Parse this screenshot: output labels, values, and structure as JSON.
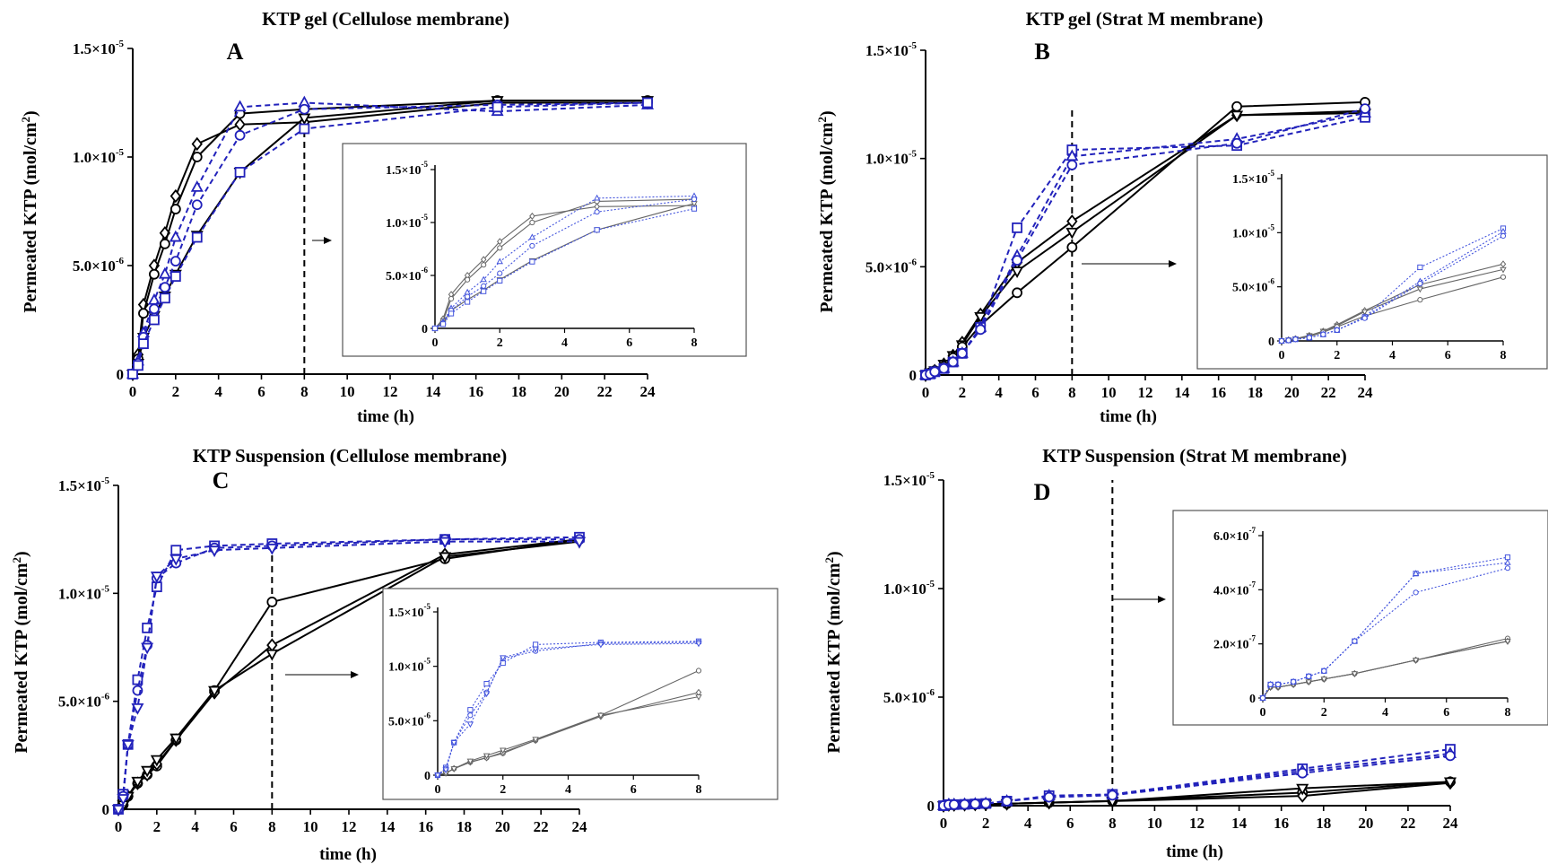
{
  "figure": {
    "colors": {
      "gel_black": "#000000",
      "blue": "#2222bb",
      "inset_gray": "#666666",
      "inset_blue": "#4455dd"
    }
  },
  "chart_data": [
    {
      "panel": "A",
      "type": "line",
      "title": "KTP gel  (Cellulose membrane)",
      "letter": "A",
      "xlabel": "time (h)",
      "ylabel": "Permeated KTP  (mol/cm2)",
      "x_ticks": [
        "0",
        "2",
        "4",
        "6",
        "8",
        "10",
        "12",
        "14",
        "16",
        "18",
        "20",
        "22",
        "24"
      ],
      "y_ticks": [
        "0",
        "5.0×10-6",
        "1.0×10-5",
        "1.5×10-5"
      ],
      "xlim": [
        0,
        24
      ],
      "ylim": [
        0,
        1.5e-05
      ],
      "vline_x": 8,
      "x": [
        0,
        0.25,
        0.5,
        1,
        1.5,
        2,
        3,
        5,
        8,
        17,
        24
      ],
      "series": [
        {
          "color": "black",
          "marker": "diamond",
          "dashed": false,
          "values": [
            0,
            9e-07,
            3.2e-06,
            5e-06,
            6.5e-06,
            8.2e-06,
            1.06e-05,
            1.15e-05,
            1.16e-05,
            1.25e-05,
            1.25e-05
          ]
        },
        {
          "color": "black",
          "marker": "circle",
          "dashed": false,
          "values": [
            0,
            7e-07,
            2.8e-06,
            4.6e-06,
            6e-06,
            7.6e-06,
            1e-05,
            1.2e-05,
            1.22e-05,
            1.26e-05,
            1.26e-05
          ]
        },
        {
          "color": "black",
          "marker": "triangle-down",
          "dashed": false,
          "values": [
            0,
            5e-07,
            1.7e-06,
            2.7e-06,
            3.6e-06,
            4.6e-06,
            6.4e-06,
            9.3e-06,
            1.18e-05,
            1.26e-05,
            1.26e-05
          ]
        },
        {
          "color": "blue",
          "marker": "triangle",
          "dashed": true,
          "values": [
            0,
            6e-07,
            1.9e-06,
            3.4e-06,
            4.6e-06,
            6.3e-06,
            8.6e-06,
            1.23e-05,
            1.25e-05,
            1.21e-05,
            1.24e-05
          ]
        },
        {
          "color": "blue",
          "marker": "circle",
          "dashed": true,
          "values": [
            0,
            5e-07,
            1.7e-06,
            3e-06,
            4e-06,
            5.2e-06,
            7.8e-06,
            1.1e-05,
            1.22e-05,
            1.24e-05,
            1.25e-05
          ]
        },
        {
          "color": "blue",
          "marker": "square",
          "dashed": true,
          "values": [
            0,
            4e-07,
            1.4e-06,
            2.5e-06,
            3.5e-06,
            4.5e-06,
            6.3e-06,
            9.3e-06,
            1.13e-05,
            1.23e-05,
            1.25e-05
          ]
        }
      ],
      "inset": {
        "x_ticks": [
          "0",
          "2",
          "4",
          "6",
          "8"
        ],
        "y_ticks": [
          "0",
          "5.0×10-6",
          "1.0×10-5",
          "1.5×10-5"
        ],
        "xlim": [
          0,
          8
        ],
        "ylim": [
          0,
          1.5e-05
        ]
      }
    },
    {
      "panel": "B",
      "type": "line",
      "title": "KTP gel (Strat M membrane)",
      "letter": "B",
      "xlabel": "time (h)",
      "ylabel": "Permeated KTP  (mol/cm2)",
      "x_ticks": [
        "0",
        "2",
        "4",
        "6",
        "8",
        "10",
        "12",
        "14",
        "16",
        "18",
        "20",
        "22",
        "24"
      ],
      "y_ticks": [
        "0",
        "5.0×10-6",
        "1.0×10-5",
        "1.5×10-5"
      ],
      "xlim": [
        0,
        24
      ],
      "ylim": [
        0,
        1.5e-05
      ],
      "vline_x": 8,
      "x": [
        0,
        0.25,
        0.5,
        1,
        1.5,
        2,
        3,
        5,
        8,
        17,
        24
      ],
      "series": [
        {
          "color": "black",
          "marker": "diamond",
          "dashed": false,
          "values": [
            0,
            1e-07,
            2e-07,
            5e-07,
            9e-07,
            1.5e-06,
            2.8e-06,
            5.2e-06,
            7.1e-06,
            1.2e-05,
            1.22e-05
          ]
        },
        {
          "color": "black",
          "marker": "triangle-down",
          "dashed": false,
          "values": [
            0,
            1e-07,
            2e-07,
            5e-07,
            9e-07,
            1.4e-06,
            2.7e-06,
            4.8e-06,
            6.6e-06,
            1.2e-05,
            1.21e-05
          ]
        },
        {
          "color": "black",
          "marker": "circle",
          "dashed": false,
          "values": [
            0,
            1e-07,
            2e-07,
            4e-07,
            8e-07,
            1.3e-06,
            2.3e-06,
            3.8e-06,
            5.9e-06,
            1.24e-05,
            1.26e-05
          ]
        },
        {
          "color": "blue",
          "marker": "square",
          "dashed": true,
          "values": [
            0,
            5e-08,
            1.5e-07,
            3e-07,
            6e-07,
            1e-06,
            2.2e-06,
            6.8e-06,
            1.04e-05,
            1.06e-05,
            1.19e-05
          ]
        },
        {
          "color": "blue",
          "marker": "triangle",
          "dashed": true,
          "values": [
            0,
            5e-08,
            1.5e-07,
            3e-07,
            6e-07,
            1e-06,
            2.2e-06,
            5.5e-06,
            1.01e-05,
            1.09e-05,
            1.21e-05
          ]
        },
        {
          "color": "blue",
          "marker": "circle",
          "dashed": true,
          "values": [
            0,
            5e-08,
            1.5e-07,
            3e-07,
            6e-07,
            1e-06,
            2.1e-06,
            5.3e-06,
            9.7e-06,
            1.07e-05,
            1.23e-05
          ]
        }
      ],
      "inset": {
        "x_ticks": [
          "0",
          "2",
          "4",
          "6",
          "8"
        ],
        "y_ticks": [
          "0",
          "5.0×10-6",
          "1.0×10-5",
          "1.5×10-5"
        ],
        "xlim": [
          0,
          8
        ],
        "ylim": [
          0,
          1.5e-05
        ]
      }
    },
    {
      "panel": "C",
      "type": "line",
      "title": "KTP Suspension (Cellulose membrane)",
      "letter": "C",
      "xlabel": "time (h)",
      "ylabel": "Permeated KTP  (mol/cm2)",
      "x_ticks": [
        "0",
        "2",
        "4",
        "6",
        "8",
        "10",
        "12",
        "14",
        "16",
        "18",
        "20",
        "22",
        "24"
      ],
      "y_ticks": [
        "0",
        "5.0×10-6",
        "1.0×10-5",
        "1.5×10-5"
      ],
      "xlim": [
        0,
        24
      ],
      "ylim": [
        0,
        1.5e-05
      ],
      "vline_x": 8,
      "x": [
        0,
        0.25,
        0.5,
        1,
        1.5,
        2,
        3,
        5,
        8,
        17,
        24
      ],
      "series": [
        {
          "color": "black",
          "marker": "circle",
          "dashed": false,
          "values": [
            0,
            2e-07,
            6e-07,
            1.2e-06,
            1.6e-06,
            2e-06,
            3.2e-06,
            5.5e-06,
            9.6e-06,
            1.16e-05,
            1.25e-05
          ]
        },
        {
          "color": "black",
          "marker": "diamond",
          "dashed": false,
          "values": [
            0,
            2e-07,
            6e-07,
            1.2e-06,
            1.6e-06,
            2.1e-06,
            3.2e-06,
            5.4e-06,
            7.6e-06,
            1.18e-05,
            1.25e-05
          ]
        },
        {
          "color": "black",
          "marker": "triangle-down",
          "dashed": false,
          "values": [
            0,
            2e-07,
            6e-07,
            1.3e-06,
            1.8e-06,
            2.3e-06,
            3.3e-06,
            5.5e-06,
            7.2e-06,
            1.17e-05,
            1.24e-05
          ]
        },
        {
          "color": "blue",
          "marker": "square",
          "dashed": true,
          "values": [
            0,
            7e-07,
            3e-06,
            6e-06,
            8.4e-06,
            1.03e-05,
            1.2e-05,
            1.22e-05,
            1.23e-05,
            1.25e-05,
            1.26e-05
          ]
        },
        {
          "color": "blue",
          "marker": "circle",
          "dashed": true,
          "values": [
            0,
            6e-07,
            3e-06,
            5.5e-06,
            7.6e-06,
            1.07e-05,
            1.14e-05,
            1.21e-05,
            1.22e-05,
            1.25e-05,
            1.25e-05
          ]
        },
        {
          "color": "blue",
          "marker": "triangle-down",
          "dashed": true,
          "values": [
            0,
            5e-07,
            3e-06,
            4.7e-06,
            7.5e-06,
            1.08e-05,
            1.16e-05,
            1.2e-05,
            1.21e-05,
            1.24e-05,
            1.24e-05
          ]
        }
      ],
      "inset": {
        "x_ticks": [
          "0",
          "2",
          "4",
          "6",
          "8"
        ],
        "y_ticks": [
          "0",
          "5.0×10-6",
          "1.0×10-5",
          "1.5×10-5"
        ],
        "xlim": [
          0,
          8
        ],
        "ylim": [
          0,
          1.5e-05
        ]
      }
    },
    {
      "panel": "D",
      "type": "line",
      "title": "KTP Suspension (Strat M membrane)",
      "letter": "D",
      "xlabel": "time (h)",
      "ylabel": "Permeated KTP  (mol/cm2)",
      "x_ticks": [
        "0",
        "2",
        "4",
        "6",
        "8",
        "10",
        "12",
        "14",
        "16",
        "18",
        "20",
        "22",
        "24"
      ],
      "y_ticks": [
        "0",
        "5.0×10-6",
        "1.0×10-5",
        "1.5×10-5"
      ],
      "xlim": [
        0,
        24
      ],
      "ylim": [
        0,
        1.5e-05
      ],
      "vline_x": 8,
      "x": [
        0,
        0.25,
        0.5,
        1,
        1.5,
        2,
        3,
        5,
        8,
        17,
        24
      ],
      "series": [
        {
          "color": "black",
          "marker": "circle",
          "dashed": false,
          "values": [
            0,
            4e-08,
            4e-08,
            5e-08,
            6e-08,
            7e-08,
            9e-08,
            1.4e-07,
            2.2e-07,
            6e-07,
            1.1e-06
          ]
        },
        {
          "color": "black",
          "marker": "diamond",
          "dashed": false,
          "values": [
            0,
            4e-08,
            4e-08,
            5e-08,
            6e-08,
            7e-08,
            9e-08,
            1.4e-07,
            2.1e-07,
            4.5e-07,
            1.05e-06
          ]
        },
        {
          "color": "black",
          "marker": "triangle-down",
          "dashed": false,
          "values": [
            0,
            4e-08,
            4e-08,
            5e-08,
            6e-08,
            7e-08,
            9e-08,
            1.4e-07,
            2.1e-07,
            8e-07,
            1.1e-06
          ]
        },
        {
          "color": "blue",
          "marker": "square",
          "dashed": true,
          "values": [
            0,
            5e-08,
            5e-08,
            6e-08,
            8e-08,
            1e-07,
            2.1e-07,
            4.6e-07,
            5.2e-07,
            1.7e-06,
            2.6e-06
          ]
        },
        {
          "color": "blue",
          "marker": "triangle",
          "dashed": true,
          "values": [
            0,
            5e-08,
            5e-08,
            6e-08,
            8e-08,
            1e-07,
            2.1e-07,
            4.6e-07,
            5e-07,
            1.6e-06,
            2.4e-06
          ]
        },
        {
          "color": "blue",
          "marker": "circle",
          "dashed": true,
          "values": [
            0,
            5e-08,
            5e-08,
            6e-08,
            8e-08,
            1e-07,
            2.1e-07,
            3.9e-07,
            4.8e-07,
            1.5e-06,
            2.3e-06
          ]
        }
      ],
      "inset": {
        "x_ticks": [
          "0",
          "2",
          "4",
          "6",
          "8"
        ],
        "y_ticks": [
          "0",
          "2.0×10-7",
          "4.0×10-7",
          "6.0×10-7"
        ],
        "xlim": [
          0,
          8
        ],
        "ylim": [
          0,
          6e-07
        ]
      }
    }
  ]
}
